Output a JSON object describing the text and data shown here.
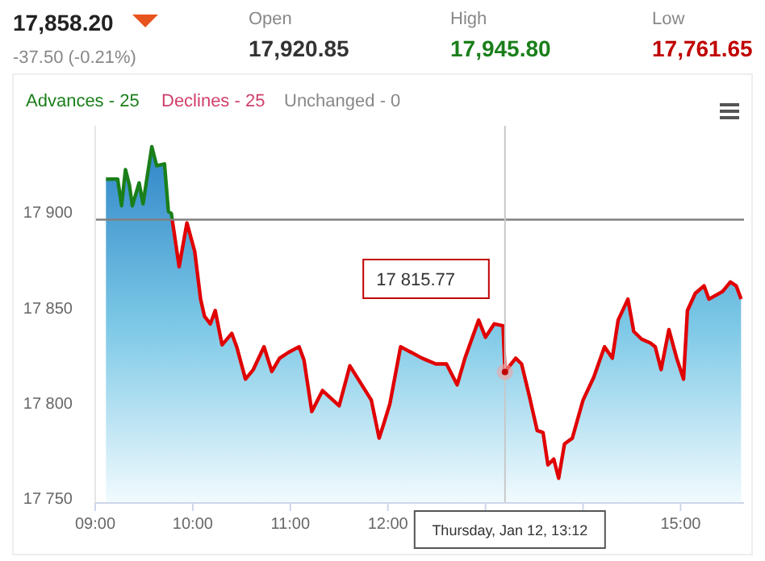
{
  "chart_data": {
    "type": "area",
    "title": "17,858.20",
    "subtitle": "-37.50 (-0.21%)",
    "annotations": [
      "Open",
      "17,920.85",
      "High",
      "17,945.80",
      "Low",
      "17,761.65",
      "Advances - 25",
      "Declines - 25",
      "Unchanged - 0",
      "17 815.77",
      {
        "text": "Thursday, Jan 12, 13:12",
        "x": 13.2,
        "y": 17747
      }
    ],
    "series": [
      {
        "color": "#e00000",
        "x": [
          9.11,
          9.23,
          9.27,
          9.31,
          9.35,
          9.38,
          9.45,
          9.49,
          9.58,
          9.63,
          9.71,
          9.75,
          9.78,
          9.8,
          9.86,
          9.94,
          10.02,
          10.08,
          10.12,
          10.18,
          10.23,
          10.3,
          10.4,
          10.45,
          10.54,
          10.62,
          10.73,
          10.81,
          10.89,
          10.98,
          11.09,
          11.14,
          11.22,
          11.33,
          11.5,
          11.61,
          11.83,
          11.91,
          11.96,
          12.02,
          12.13,
          12.35,
          12.49,
          12.6,
          12.71,
          12.79,
          12.93,
          13.0,
          13.09,
          13.18,
          13.2,
          13.31,
          13.37,
          13.45,
          13.53,
          13.59,
          13.64,
          13.7,
          13.75,
          13.81,
          13.89,
          14.0,
          14.11,
          14.22,
          14.3,
          14.36,
          14.46,
          14.52,
          14.6,
          14.69,
          14.74,
          14.8,
          14.88,
          14.96,
          15.03,
          15.07,
          15.15,
          15.24,
          15.29,
          15.43,
          15.51,
          15.57,
          15.62
        ],
        "values": [
          17917,
          17917,
          17903,
          17922,
          17914,
          17903,
          17915,
          17904,
          17934,
          17924,
          17925,
          17900,
          17899,
          17892,
          17871,
          17894,
          17879,
          17854,
          17845,
          17841,
          17848,
          17830,
          17836,
          17829,
          17812,
          17817,
          17829,
          17816,
          17823,
          17826,
          17829,
          17822,
          17795,
          17806,
          17798,
          17819,
          17801,
          17781,
          17789,
          17799,
          17829,
          17823,
          17820,
          17820,
          17809,
          17823,
          17843,
          17834,
          17841,
          17840,
          17815.77,
          17823,
          17820,
          17803,
          17785,
          17784,
          17767,
          17770,
          17760,
          17778,
          17781,
          17801,
          17813,
          17829,
          17823,
          17843,
          17854,
          17837,
          17833,
          17831,
          17829,
          17817,
          17838,
          17823,
          17812,
          17848,
          17857,
          17861,
          17854,
          17858,
          17863,
          17861,
          17854
        ]
      }
    ],
    "xlim": [
      9,
      15.65
    ],
    "ylim": [
      17747,
      17945
    ],
    "xticks": [
      {
        "value": 9,
        "label": "09:00"
      },
      {
        "value": 10,
        "label": "10:00"
      },
      {
        "value": 11,
        "label": "11:00"
      },
      {
        "value": 12,
        "label": "12:00"
      },
      {
        "value": 13,
        "label": null
      },
      {
        "value": 14,
        "label": null
      },
      {
        "value": 15,
        "label": "15:00"
      }
    ],
    "yticks": [
      {
        "value": 17750,
        "label": "17 750"
      },
      {
        "value": 17800,
        "label": "17 800"
      },
      {
        "value": 17850,
        "label": "17 850"
      },
      {
        "value": 17900,
        "label": "17 900"
      }
    ],
    "ref_lines": [
      {
        "axis": "y",
        "value": 17895.7,
        "color": "#808080"
      },
      {
        "axis": "x",
        "value": 13.2,
        "color": "#c8c8c8"
      }
    ],
    "grid": false
  }
}
